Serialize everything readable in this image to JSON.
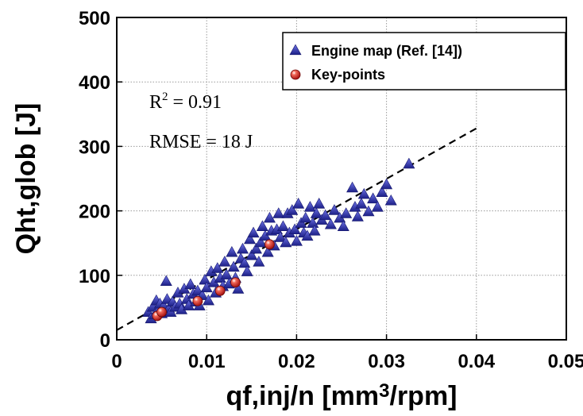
{
  "chart_data": {
    "type": "scatter",
    "title": "",
    "xlabel": "qf,inj/n [mm3/rpm]",
    "ylabel": "Qht,glob [J]",
    "xlim": [
      0,
      0.05
    ],
    "ylim": [
      0,
      500
    ],
    "x_ticks": [
      "0",
      "0.01",
      "0.02",
      "0.03",
      "0.04",
      "0.05"
    ],
    "y_ticks": [
      "0",
      "100",
      "200",
      "300",
      "400",
      "500"
    ],
    "grid": true,
    "legend_position": "top-right",
    "annotations": {
      "r2_prefix": "R",
      "r2_sup": "2",
      "r2_value": " = 0.91",
      "rmse": "RMSE = 18 J"
    },
    "fit_line": {
      "x": [
        0,
        0.04
      ],
      "y": [
        15,
        328
      ],
      "style": "dashed"
    },
    "series": [
      {
        "name": "Engine map (Ref. [14])",
        "marker": "triangle",
        "color": "#2b2fa8",
        "points": [
          [
            0.0035,
            42
          ],
          [
            0.0038,
            32
          ],
          [
            0.004,
            50
          ],
          [
            0.0042,
            38
          ],
          [
            0.0044,
            60
          ],
          [
            0.0046,
            45
          ],
          [
            0.0048,
            55
          ],
          [
            0.005,
            40
          ],
          [
            0.0052,
            52
          ],
          [
            0.0055,
            90
          ],
          [
            0.0056,
            62
          ],
          [
            0.0058,
            48
          ],
          [
            0.006,
            42
          ],
          [
            0.0062,
            58
          ],
          [
            0.0065,
            50
          ],
          [
            0.0068,
            72
          ],
          [
            0.007,
            55
          ],
          [
            0.0072,
            46
          ],
          [
            0.0075,
            78
          ],
          [
            0.0078,
            62
          ],
          [
            0.008,
            52
          ],
          [
            0.0082,
            85
          ],
          [
            0.0085,
            70
          ],
          [
            0.0088,
            58
          ],
          [
            0.009,
            75
          ],
          [
            0.0092,
            52
          ],
          [
            0.0095,
            68
          ],
          [
            0.0098,
            92
          ],
          [
            0.01,
            80
          ],
          [
            0.0102,
            60
          ],
          [
            0.0105,
            105
          ],
          [
            0.0108,
            88
          ],
          [
            0.011,
            72
          ],
          [
            0.0112,
            110
          ],
          [
            0.0115,
            95
          ],
          [
            0.0118,
            82
          ],
          [
            0.012,
            120
          ],
          [
            0.0122,
            100
          ],
          [
            0.0125,
            86
          ],
          [
            0.0128,
            135
          ],
          [
            0.013,
            112
          ],
          [
            0.0132,
            95
          ],
          [
            0.0135,
            78
          ],
          [
            0.0138,
            125
          ],
          [
            0.014,
            140
          ],
          [
            0.0142,
            118
          ],
          [
            0.0145,
            105
          ],
          [
            0.0148,
            155
          ],
          [
            0.015,
            130
          ],
          [
            0.0152,
            165
          ],
          [
            0.0155,
            140
          ],
          [
            0.0158,
            120
          ],
          [
            0.016,
            150
          ],
          [
            0.0162,
            175
          ],
          [
            0.0165,
            160
          ],
          [
            0.0168,
            135
          ],
          [
            0.017,
            188
          ],
          [
            0.0172,
            168
          ],
          [
            0.0175,
            145
          ],
          [
            0.0178,
            170
          ],
          [
            0.018,
            195
          ],
          [
            0.0182,
            158
          ],
          [
            0.0185,
            175
          ],
          [
            0.0188,
            150
          ],
          [
            0.019,
            195
          ],
          [
            0.0192,
            165
          ],
          [
            0.0195,
            200
          ],
          [
            0.0198,
            170
          ],
          [
            0.02,
            152
          ],
          [
            0.0202,
            210
          ],
          [
            0.0205,
            180
          ],
          [
            0.0208,
            165
          ],
          [
            0.021,
            188
          ],
          [
            0.0212,
            160
          ],
          [
            0.0215,
            205
          ],
          [
            0.0218,
            180
          ],
          [
            0.022,
            168
          ],
          [
            0.0222,
            195
          ],
          [
            0.0225,
            210
          ],
          [
            0.0228,
            185
          ],
          [
            0.0232,
            192
          ],
          [
            0.0238,
            178
          ],
          [
            0.0242,
            200
          ],
          [
            0.0248,
            188
          ],
          [
            0.0252,
            175
          ],
          [
            0.0255,
            195
          ],
          [
            0.0262,
            235
          ],
          [
            0.0265,
            205
          ],
          [
            0.0268,
            190
          ],
          [
            0.0272,
            210
          ],
          [
            0.0275,
            225
          ],
          [
            0.028,
            198
          ],
          [
            0.0285,
            218
          ],
          [
            0.029,
            205
          ],
          [
            0.0295,
            228
          ],
          [
            0.03,
            240
          ],
          [
            0.0305,
            215
          ],
          [
            0.0325,
            272
          ]
        ]
      },
      {
        "name": "Key-points",
        "marker": "circle",
        "color": "#d42020",
        "points": [
          [
            0.0045,
            37
          ],
          [
            0.005,
            43
          ],
          [
            0.009,
            60
          ],
          [
            0.0115,
            76
          ],
          [
            0.0132,
            89
          ],
          [
            0.017,
            148
          ]
        ]
      }
    ]
  }
}
